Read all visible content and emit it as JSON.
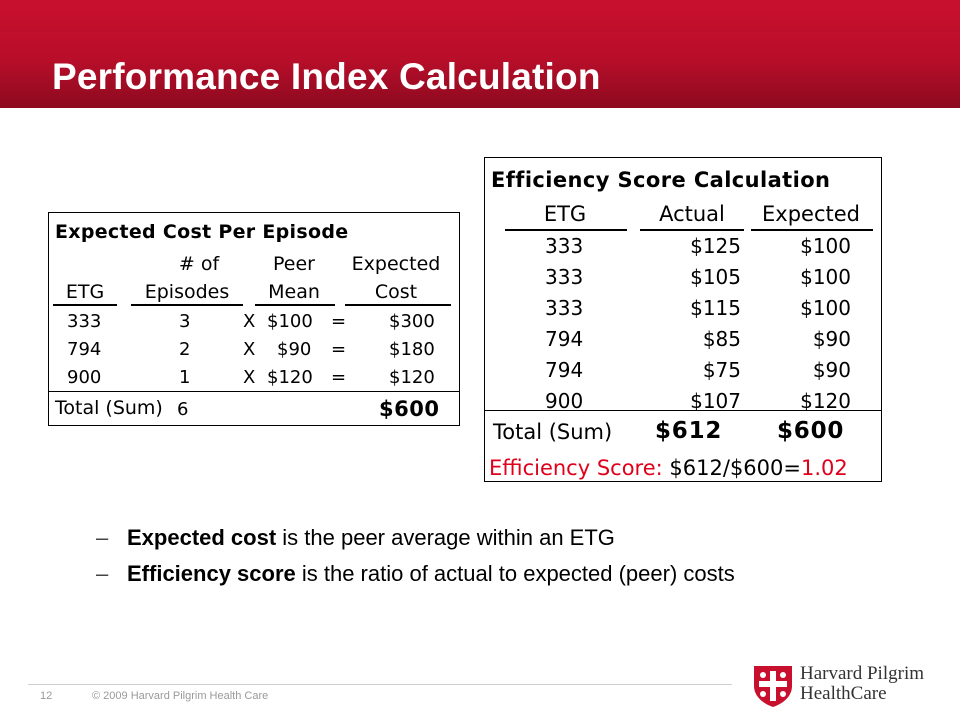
{
  "slide": {
    "title": "Performance Index Calculation",
    "page_number": "12",
    "copyright": "© 2009 Harvard Pilgrim Health Care",
    "logo": {
      "line1": "Harvard Pilgrim",
      "line2": "HealthCare"
    },
    "colors": {
      "header": "#c8102e",
      "accent_red": "#e0001b"
    }
  },
  "expected_table": {
    "caption": "Expected Cost Per Episode",
    "headers": {
      "etg": "ETG",
      "episodes_1": "# of",
      "episodes_2": "Episodes",
      "mean_1": "Peer",
      "mean_2": "Mean",
      "cost_1": "Expected",
      "cost_2": "Cost"
    },
    "rows": [
      {
        "etg": "333",
        "episodes": "3",
        "x": "X",
        "mean": "$100",
        "eq": "=",
        "cost": "$300"
      },
      {
        "etg": "794",
        "episodes": "2",
        "x": "X",
        "mean": "$90",
        "eq": "=",
        "cost": "$180"
      },
      {
        "etg": "900",
        "episodes": "1",
        "x": "X",
        "mean": "$120",
        "eq": "=",
        "cost": "$120"
      }
    ],
    "total_label": "Total (Sum)",
    "total_episodes": "6",
    "total_cost": "$600"
  },
  "efficiency_table": {
    "caption": "Efficiency Score Calculation",
    "headers": {
      "etg": "ETG",
      "actual": "Actual",
      "expected": "Expected"
    },
    "rows": [
      {
        "etg": "333",
        "actual": "$125",
        "expected": "$100"
      },
      {
        "etg": "333",
        "actual": "$105",
        "expected": "$100"
      },
      {
        "etg": "333",
        "actual": "$115",
        "expected": "$100"
      },
      {
        "etg": "794",
        "actual": "$85",
        "expected": "$90"
      },
      {
        "etg": "794",
        "actual": "$75",
        "expected": "$90"
      },
      {
        "etg": "900",
        "actual": "$107",
        "expected": "$120"
      }
    ],
    "total_label": "Total (Sum)",
    "total_actual": "$612",
    "total_expected": "$600",
    "score_label": "Efficiency Score:",
    "score_formula": "$612/$600=",
    "score_value": "1.02"
  },
  "bullets": [
    {
      "dash": "–",
      "bold": "Expected cost",
      "rest": " is the peer average within an ETG"
    },
    {
      "dash": "–",
      "bold": "Efficiency score",
      "rest": " is the ratio of actual to expected (peer) costs"
    }
  ]
}
